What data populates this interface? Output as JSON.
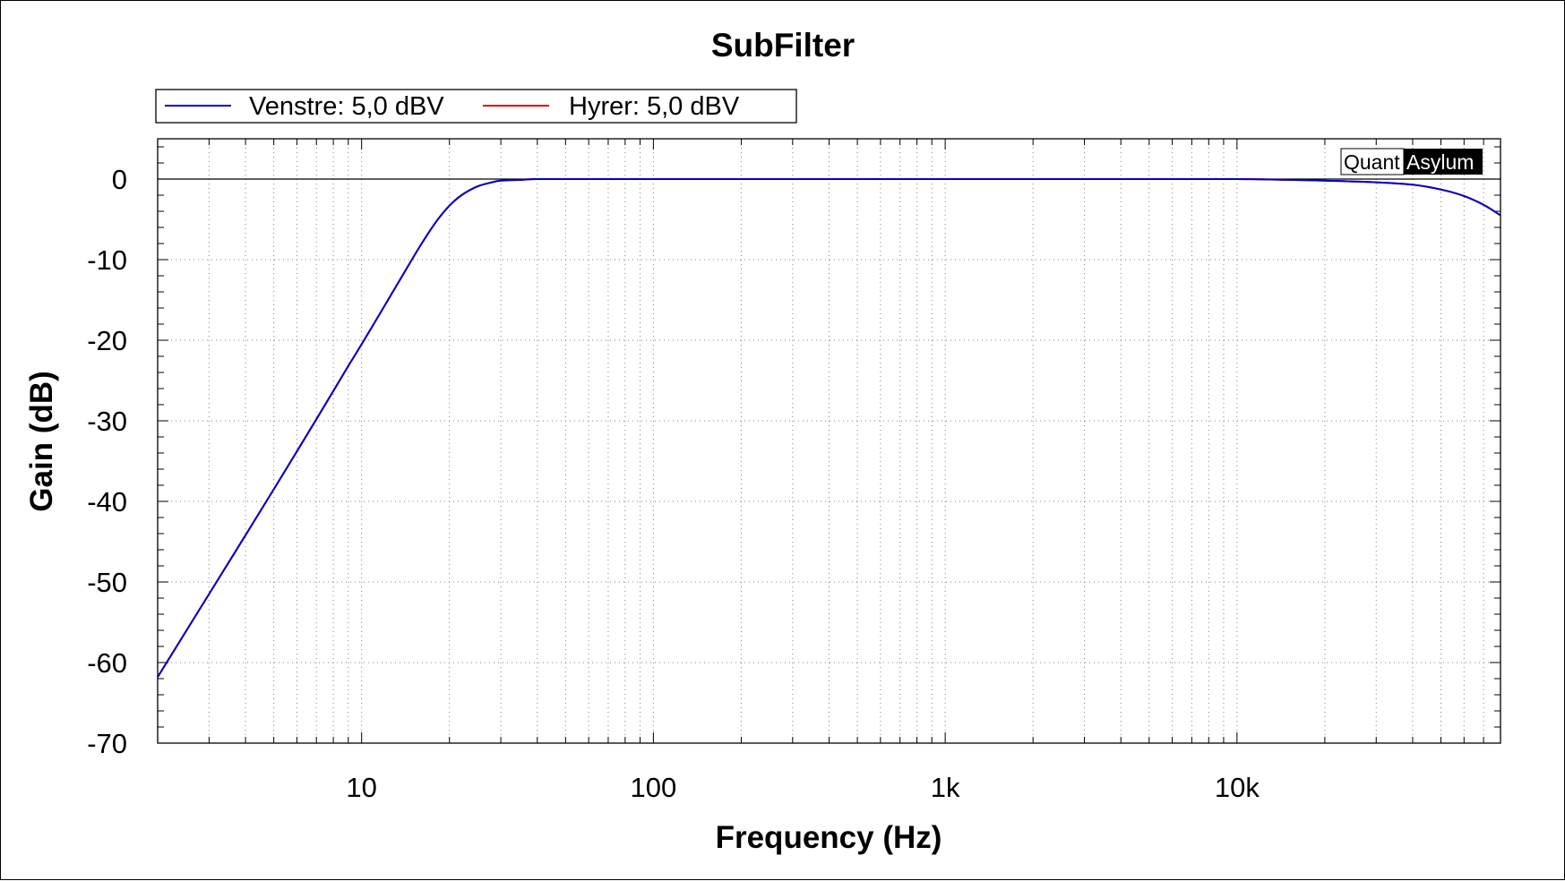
{
  "chart_data": {
    "type": "line",
    "title": "SubFilter",
    "xlabel": "Frequency (Hz)",
    "ylabel": "Gain (dB)",
    "x_scale": "log",
    "xlim": [
      2,
      80000
    ],
    "ylim": [
      -70,
      5
    ],
    "grid": true,
    "legend_position": "top-left",
    "x_ticks": [
      {
        "value": 10,
        "label": "10"
      },
      {
        "value": 100,
        "label": "100"
      },
      {
        "value": 1000,
        "label": "1k"
      },
      {
        "value": 10000,
        "label": "10k"
      }
    ],
    "y_ticks": [
      {
        "value": 0,
        "label": "0"
      },
      {
        "value": -10,
        "label": "-10"
      },
      {
        "value": -20,
        "label": "-20"
      },
      {
        "value": -30,
        "label": "-30"
      },
      {
        "value": -40,
        "label": "-40"
      },
      {
        "value": -50,
        "label": "-50"
      },
      {
        "value": -60,
        "label": "-60"
      },
      {
        "value": -70,
        "label": "-70"
      }
    ],
    "series": [
      {
        "name": "Venstre: 5,0 dBV",
        "color": "#0000cc",
        "x": [
          2,
          3,
          4,
          5,
          6,
          7,
          8,
          9,
          10,
          12,
          14,
          16,
          18,
          20,
          22,
          25,
          28,
          30,
          35,
          40,
          50,
          60,
          80,
          100,
          200,
          500,
          1000,
          2000,
          5000,
          10000,
          15000,
          20000,
          30000,
          40000,
          50000,
          60000,
          70000,
          80000
        ],
        "y": [
          -61.8,
          -51.5,
          -44.2,
          -38.5,
          -33.8,
          -29.8,
          -26.3,
          -23.2,
          -20.5,
          -15.7,
          -11.6,
          -8.1,
          -5.3,
          -3.3,
          -2.0,
          -0.9,
          -0.4,
          -0.2,
          -0.1,
          0,
          0,
          0,
          0,
          0,
          0,
          0,
          0,
          0,
          0,
          0,
          -0.1,
          -0.2,
          -0.4,
          -0.7,
          -1.3,
          -2.1,
          -3.2,
          -4.5
        ]
      },
      {
        "name": "Hyrer: 5,0 dBV",
        "color": "#dd0000",
        "x": [
          2,
          3,
          4,
          5,
          6,
          7,
          8,
          9,
          10,
          12,
          14,
          16,
          18,
          20,
          22,
          25,
          28,
          30,
          35,
          40,
          50,
          60,
          80,
          100,
          200,
          500,
          1000,
          2000,
          5000,
          10000,
          15000,
          20000,
          30000,
          40000,
          50000,
          60000,
          70000,
          80000
        ],
        "y": [
          -61.8,
          -51.5,
          -44.2,
          -38.5,
          -33.8,
          -29.8,
          -26.3,
          -23.2,
          -20.5,
          -15.7,
          -11.6,
          -8.1,
          -5.3,
          -3.3,
          -2.0,
          -0.9,
          -0.4,
          -0.2,
          -0.1,
          0,
          0,
          0,
          0,
          0,
          0,
          0,
          0,
          0,
          0,
          0,
          -0.1,
          -0.2,
          -0.4,
          -0.7,
          -1.3,
          -2.1,
          -3.2,
          -4.5
        ]
      }
    ]
  },
  "watermark": {
    "part1": "Quant",
    "part2": "Asylum"
  }
}
